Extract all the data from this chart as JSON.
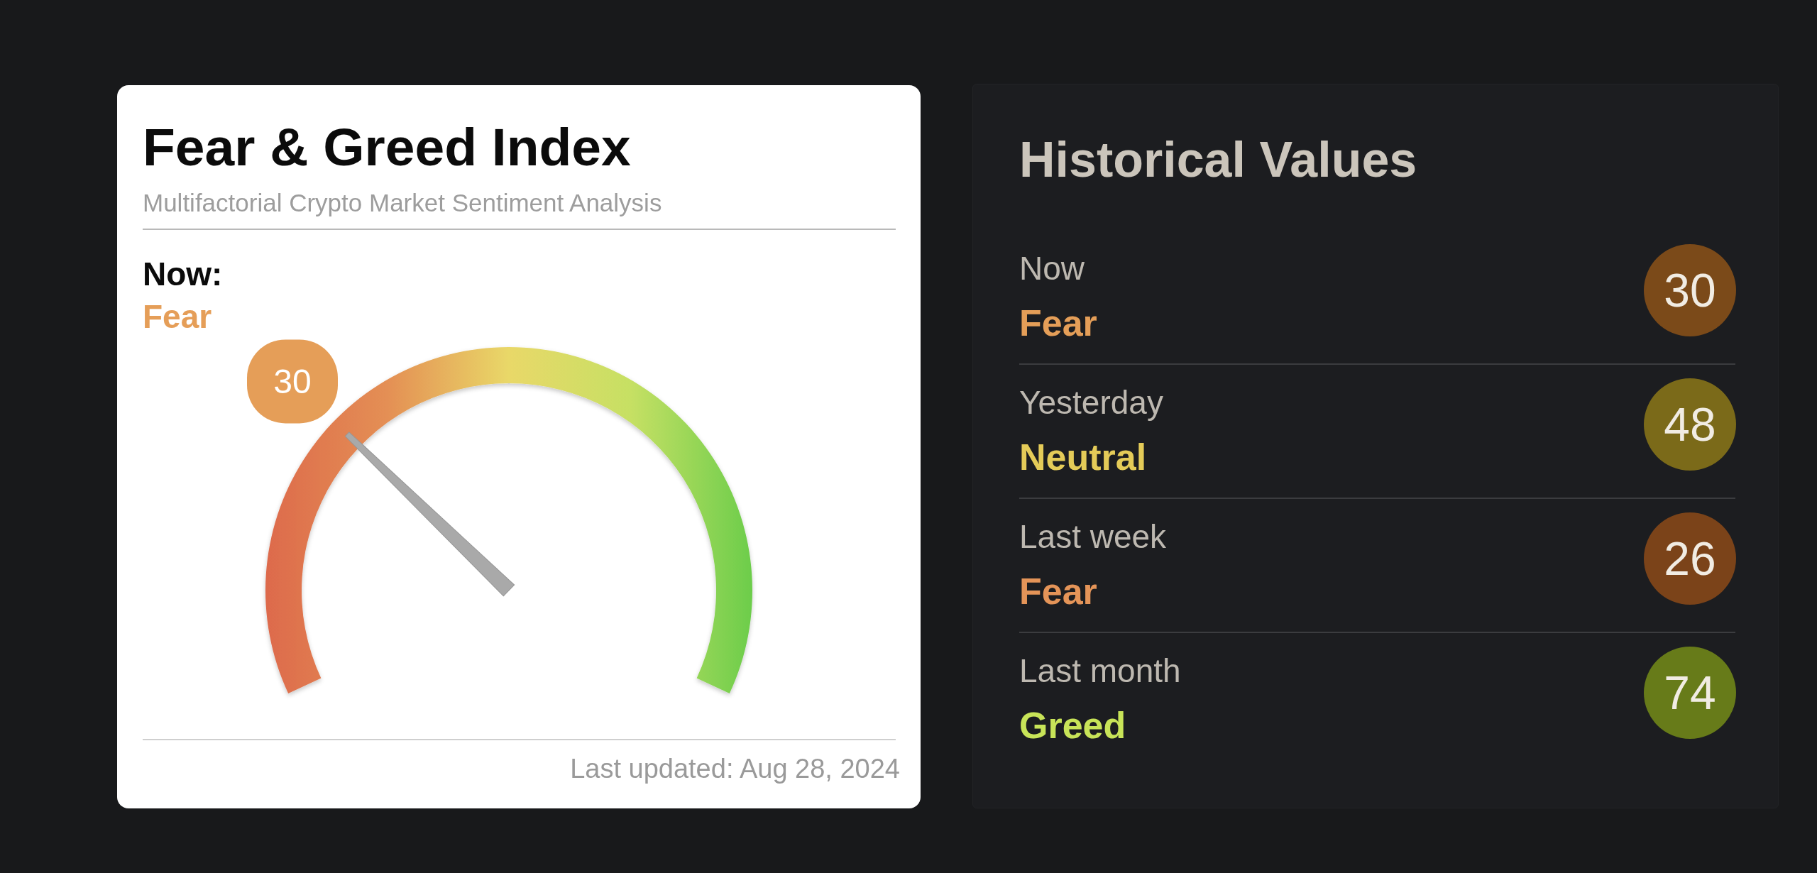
{
  "chart_data": [
    {
      "type": "other",
      "title": "Fear & Greed Index",
      "subtitle": "Multifactorial Crypto Market Sentiment Analysis",
      "values": [
        30
      ],
      "data_labels": true,
      "annotations": [
        "Now:",
        "Fear",
        "Last updated: Aug 28, 2024"
      ]
    },
    {
      "type": "other",
      "title": "Historical Values",
      "categories": [
        "Now",
        "Yesterday",
        "Last week",
        "Last month"
      ],
      "values": [
        30,
        48,
        26,
        74
      ],
      "data_labels": true,
      "annotations": [
        "Fear",
        "Neutral",
        "Fear",
        "Greed"
      ]
    }
  ]
}
